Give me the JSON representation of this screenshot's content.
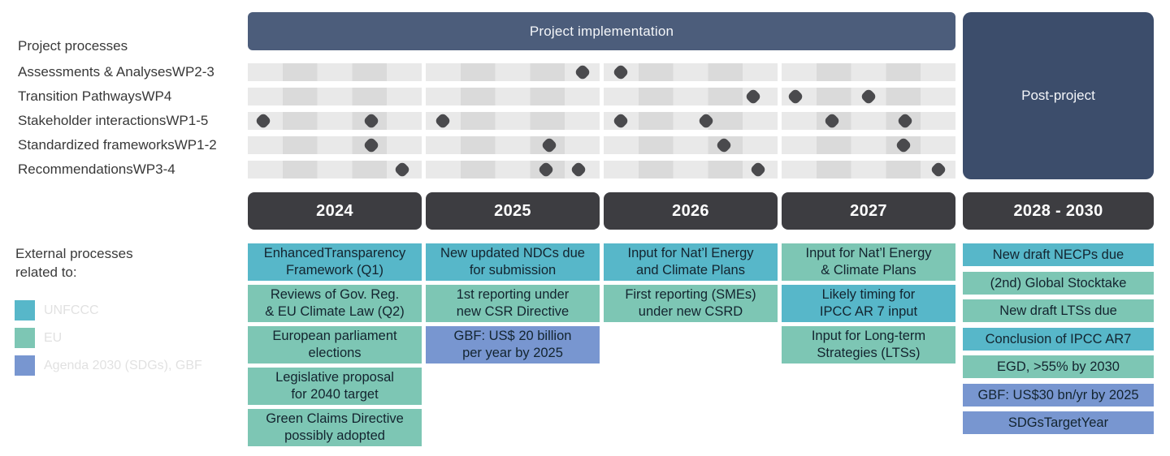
{
  "palette": {
    "slate": "#4c5d7b",
    "navy": "#3c4d6b",
    "year_header_bg": "#3d3d41",
    "teal": "#57b7c9",
    "green": "#7dc6b4",
    "blue": "#7896d0",
    "stripe_light": "#e9e9e9",
    "stripe_dark": "#dadada",
    "dot": "#4a4a4d"
  },
  "header": {
    "project_implementation": "Project implementation",
    "post_project": "Post-project"
  },
  "left_labels": {
    "project_processes": "Project processes",
    "external_processes": "External processes\nrelated to:"
  },
  "years": [
    "2024",
    "2025",
    "2026",
    "2027",
    "2028 - 2030"
  ],
  "process_rows": [
    {
      "label": "Assessments & Analyses",
      "wp": "WP2-3",
      "milestones": [
        [],
        [
          0.9
        ],
        [
          0.1
        ],
        []
      ]
    },
    {
      "label": "Transition Pathways",
      "wp": "WP4",
      "milestones": [
        [],
        [],
        [
          0.86
        ],
        [
          0.08,
          0.5
        ]
      ]
    },
    {
      "label": "Stakeholder interactions",
      "wp": "WP1-5",
      "milestones": [
        [
          0.09,
          0.71
        ],
        [
          0.1
        ],
        [
          0.1,
          0.59
        ],
        [
          0.29,
          0.71
        ]
      ]
    },
    {
      "label": "Standardized frameworks",
      "wp": "WP1-2",
      "milestones": [
        [
          0.71
        ],
        [
          0.71
        ],
        [
          0.69
        ],
        [
          0.7
        ]
      ]
    },
    {
      "label": "Recommendations",
      "wp": "WP3-4",
      "milestones": [
        [
          0.89
        ],
        [
          0.69,
          0.88
        ],
        [
          0.89
        ],
        [
          0.9
        ]
      ]
    }
  ],
  "legend": [
    {
      "label": "UNFCCC",
      "color": "teal"
    },
    {
      "label": "EU",
      "color": "green"
    },
    {
      "label": "Agenda 2030 (SDGs), GBF",
      "color": "blue"
    }
  ],
  "external_columns": [
    {
      "year": "2024",
      "single_line": false,
      "boxes": [
        {
          "text": "EnhancedTransparency\nFramework (Q1)",
          "color": "teal"
        },
        {
          "text": "Reviews of Gov. Reg.\n& EU Climate Law (Q2)",
          "color": "green"
        },
        {
          "text": "European parliament\nelections",
          "color": "green"
        },
        {
          "text": "Legislative proposal\nfor 2040 target",
          "color": "green"
        },
        {
          "text": "Green Claims Directive\npossibly adopted",
          "color": "green"
        }
      ]
    },
    {
      "year": "2025",
      "single_line": false,
      "boxes": [
        {
          "text": "New updated NDCs due\nfor submission",
          "color": "teal"
        },
        {
          "text": "1st reporting under\nnew CSR Directive",
          "color": "green"
        },
        {
          "text": "GBF: US$ 20 billion\nper year by 2025",
          "color": "blue"
        }
      ]
    },
    {
      "year": "2026",
      "single_line": false,
      "boxes": [
        {
          "text": "Input for Nat’l Energy\nand Climate Plans",
          "color": "teal"
        },
        {
          "text": "First reporting (SMEs)\nunder new CSRD",
          "color": "green"
        }
      ]
    },
    {
      "year": "2027",
      "single_line": false,
      "boxes": [
        {
          "text": "Input for Nat’l Energy\n& Climate Plans",
          "color": "green"
        },
        {
          "text": "Likely timing for\nIPCC AR 7 input",
          "color": "teal"
        },
        {
          "text": "Input for Long-term\nStrategies (LTSs)",
          "color": "green"
        }
      ]
    },
    {
      "year": "2028 - 2030",
      "single_line": true,
      "boxes": [
        {
          "text": "New draft NECPs due",
          "color": "teal"
        },
        {
          "text": "(2nd) Global Stocktake",
          "color": "green"
        },
        {
          "text": "New draft LTSs due",
          "color": "green"
        },
        {
          "text": "Conclusion of IPCC AR7",
          "color": "teal"
        },
        {
          "text": "EGD, >55% by 2030",
          "color": "green"
        },
        {
          "text": "GBF: US$30 bn/yr by 2025",
          "color": "blue"
        },
        {
          "text": "SDGsTargetYear",
          "color": "blue"
        }
      ]
    }
  ]
}
